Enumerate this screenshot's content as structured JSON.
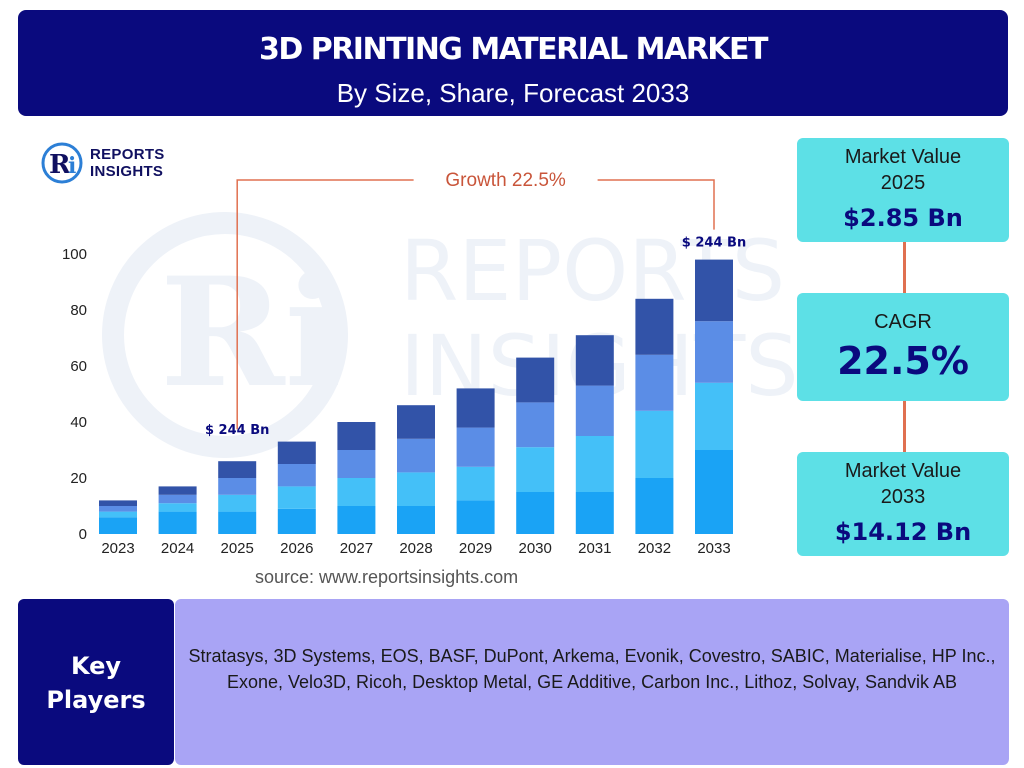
{
  "header": {
    "title": "3D PRINTING MATERIAL MARKET",
    "subtitle": "By Size, Share, Forecast 2033"
  },
  "logo": {
    "icon": "ri-logo-icon",
    "line1": "REPORTS",
    "line2": "INSIGHTS",
    "watermark_line1": "REPORTS",
    "watermark_line2": "INSIGHTS"
  },
  "chart_data": {
    "type": "bar",
    "stacked": true,
    "categories": [
      "2023",
      "2024",
      "2025",
      "2026",
      "2027",
      "2028",
      "2029",
      "2030",
      "2031",
      "2032",
      "2033"
    ],
    "series": [
      {
        "color": "#1aa3f5",
        "values": [
          6,
          8,
          8,
          9,
          10,
          10,
          12,
          15,
          15,
          20,
          30
        ]
      },
      {
        "color": "#44c0f8",
        "values": [
          2,
          3,
          6,
          8,
          10,
          12,
          12,
          16,
          20,
          24,
          24
        ]
      },
      {
        "color": "#5b8de6",
        "values": [
          2,
          3,
          6,
          8,
          10,
          12,
          14,
          16,
          18,
          20,
          22
        ]
      },
      {
        "color": "#3253a8",
        "values": [
          2,
          3,
          6,
          8,
          10,
          12,
          14,
          16,
          18,
          20,
          22
        ]
      }
    ],
    "y_ticks": [
      "0",
      "20",
      "40",
      "60",
      "80",
      "100"
    ],
    "ylim": [
      0,
      100
    ],
    "grid": false,
    "annotations": {
      "growth_label": "Growth  22.5%",
      "start_label": "$ 244 Bn",
      "end_label": "$ 244 Bn"
    }
  },
  "source": "source: www.reportsinsights.com",
  "stats": {
    "value_2025_label": "Market Value 2025",
    "value_2025": "$2.85 Bn",
    "cagr_label": "CAGR",
    "cagr": "22.5%",
    "value_2033_label": "Market Value 2033",
    "value_2033": "$14.12 Bn"
  },
  "players": {
    "label_line1": "Key",
    "label_line2": "Players",
    "list": "Stratasys, 3D Systems, EOS, BASF, DuPont, Arkema, Evonik, Covestro, SABIC, Materialise, HP Inc., Exone, Velo3D, Ricoh, Desktop Metal, GE Additive, Carbon Inc., Lithoz, Solvay, Sandvik AB"
  },
  "colors": {
    "navy": "#0a0a7e",
    "cyan_box": "#5de0e6",
    "lavender": "#a9a4f5",
    "accent": "#e07050"
  }
}
